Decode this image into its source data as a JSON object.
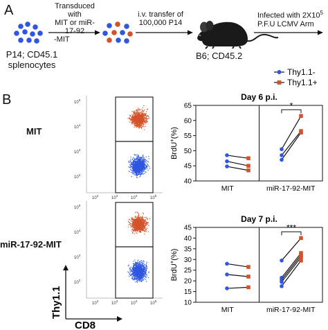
{
  "panel_a": {
    "letter": "A",
    "step1_lines": [
      "Transduced with",
      "MIT or miR-17-92",
      "-MIT"
    ],
    "step2_lines": [
      "i.v. transfer of",
      "100,000 P14"
    ],
    "step3_line1_main": "Infected with 2X10",
    "step3_line1_sup": "5",
    "step3_line2": "P.F.U LCMV Arm",
    "cells_label_lines": [
      "P14; CD45.1",
      "splenocytes"
    ],
    "mouse_label": "B6; CD45.2",
    "colors": {
      "blue": "#2f56e0",
      "red": "#d2532a"
    }
  },
  "panel_b": {
    "letter": "B",
    "legend": [
      {
        "label": "Thy1.1-",
        "color": "#2f56e0"
      },
      {
        "label": "Thy1.1+",
        "color": "#d2532a"
      }
    ],
    "flow_rows": [
      {
        "label": "MIT"
      },
      {
        "label": "miR-17-92-MIT"
      }
    ],
    "flow_axes": {
      "y_title": "Thy1.1",
      "x_title": "CD8",
      "tick_base": "10",
      "y_exponents": [
        "5",
        "4",
        "3",
        "2"
      ],
      "x_exponents": [
        "2",
        "3",
        "4",
        "5"
      ]
    }
  },
  "chart_data": [
    {
      "type": "line",
      "title": "Day 6 p.i.",
      "ylabel_main": "BrdU",
      "ylabel_sup": "+",
      "ylabel_unit": "(%)",
      "ylim": [
        40,
        65
      ],
      "yticks": [
        40,
        45,
        50,
        55,
        60,
        65
      ],
      "groups": [
        "MIT",
        "miR-17-92-MIT"
      ],
      "significance": "*",
      "pairs": [
        {
          "group": "MIT",
          "thy11_neg": 48.5,
          "thy11_pos": 47.5
        },
        {
          "group": "MIT",
          "thy11_neg": 46.5,
          "thy11_pos": 45.0
        },
        {
          "group": "MIT",
          "thy11_neg": 44.8,
          "thy11_pos": 43.5
        },
        {
          "group": "miR-17-92-MIT",
          "thy11_neg": 50.5,
          "thy11_pos": 61.5
        },
        {
          "group": "miR-17-92-MIT",
          "thy11_neg": 48.5,
          "thy11_pos": 56.5
        },
        {
          "group": "miR-17-92-MIT",
          "thy11_neg": 47.0,
          "thy11_pos": 56.0
        }
      ]
    },
    {
      "type": "line",
      "title": "Day 7 p.i.",
      "ylabel_main": "BrdU",
      "ylabel_sup": "+",
      "ylabel_unit": "(%)",
      "ylim": [
        10,
        45
      ],
      "yticks": [
        10,
        15,
        20,
        25,
        30,
        35,
        40,
        45
      ],
      "groups": [
        "MIT",
        "miR-17-92-MIT"
      ],
      "significance": "***",
      "pairs": [
        {
          "group": "MIT",
          "thy11_neg": 28.0,
          "thy11_pos": 26.5
        },
        {
          "group": "MIT",
          "thy11_neg": 23.0,
          "thy11_pos": 22.0
        },
        {
          "group": "MIT",
          "thy11_neg": 16.5,
          "thy11_pos": 17.0
        },
        {
          "group": "miR-17-92-MIT",
          "thy11_neg": 29.5,
          "thy11_pos": 40.0
        },
        {
          "group": "miR-17-92-MIT",
          "thy11_neg": 21.5,
          "thy11_pos": 33.0
        },
        {
          "group": "miR-17-92-MIT",
          "thy11_neg": 20.5,
          "thy11_pos": 32.0
        },
        {
          "group": "miR-17-92-MIT",
          "thy11_neg": 19.5,
          "thy11_pos": 31.0
        },
        {
          "group": "miR-17-92-MIT",
          "thy11_neg": 17.5,
          "thy11_pos": 29.5
        }
      ]
    }
  ]
}
